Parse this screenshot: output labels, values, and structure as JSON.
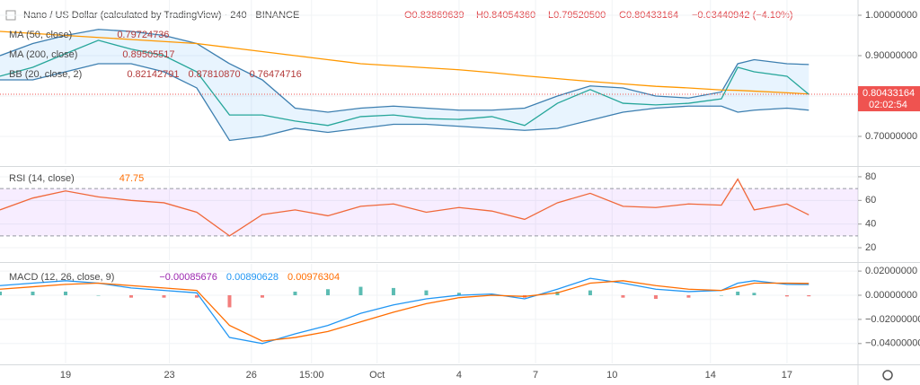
{
  "header": {
    "title": "Nano / US Dollar (calculated by TradingView) · 240 · BINANCE",
    "open": "O0.83869639",
    "high": "H0.84054360",
    "low": "L0.79520500",
    "close": "C0.80433164",
    "change": "−0.03440942 (−4.10%)"
  },
  "chart_data": [
    {
      "type": "line",
      "grid": true,
      "legend": [
        {
          "label": "MA (50, close)",
          "readings": [
            "0.79724736"
          ]
        },
        {
          "label": "MA (200, close)",
          "readings": [
            "0.89505517"
          ]
        },
        {
          "label": "BB (20, close, 2)",
          "readings": [
            "0.82142791",
            "0.87810870",
            "0.76474716"
          ]
        }
      ],
      "xlim": [
        0,
        157
      ],
      "xticks": [
        {
          "value": 12,
          "label": "19"
        },
        {
          "value": 31,
          "label": "23"
        },
        {
          "value": 46,
          "label": "26"
        },
        {
          "value": 57,
          "label": "15:00"
        },
        {
          "value": 69,
          "label": "Oct"
        },
        {
          "value": 84,
          "label": "4"
        },
        {
          "value": 98,
          "label": "7"
        },
        {
          "value": 112,
          "label": "10"
        },
        {
          "value": 130,
          "label": "14"
        },
        {
          "value": 144,
          "label": "17"
        }
      ],
      "ylim": [
        0.631,
        1.0378
      ],
      "yticks": [
        {
          "value": 0.7,
          "label": "0.70000000"
        },
        {
          "value": 0.8,
          "label": "0.80000000"
        },
        {
          "value": 0.9,
          "label": "0.90000000"
        },
        {
          "value": 1.0,
          "label": "1.00000000"
        }
      ],
      "last_price": {
        "value": 0.80433164,
        "label": "0.80433164",
        "countdown": "02:02:54",
        "color": "#ef5350"
      },
      "band_fill": "rgba(33,150,243,0.10)",
      "x": [
        0,
        6,
        12,
        18,
        24,
        30,
        36,
        42,
        48,
        54,
        60,
        66,
        72,
        78,
        84,
        90,
        96,
        102,
        108,
        114,
        120,
        126,
        132,
        135,
        138,
        144,
        148
      ],
      "series": [
        {
          "role": "band-upper",
          "color": "#3d7fb0",
          "values": [
            0.9,
            0.93,
            0.95,
            0.965,
            0.96,
            0.95,
            0.93,
            0.88,
            0.84,
            0.77,
            0.76,
            0.77,
            0.775,
            0.77,
            0.765,
            0.765,
            0.77,
            0.8,
            0.825,
            0.82,
            0.8,
            0.795,
            0.81,
            0.88,
            0.89,
            0.88,
            0.878
          ]
        },
        {
          "role": "band-lower",
          "color": "#3d7fb0",
          "values": [
            0.84,
            0.84,
            0.86,
            0.88,
            0.88,
            0.86,
            0.82,
            0.69,
            0.7,
            0.72,
            0.71,
            0.72,
            0.73,
            0.73,
            0.725,
            0.72,
            0.715,
            0.72,
            0.74,
            0.76,
            0.77,
            0.775,
            0.775,
            0.76,
            0.765,
            0.77,
            0.765
          ]
        },
        {
          "color": "#ff9800",
          "values": [
            0.96,
            0.955,
            0.95,
            0.945,
            0.94,
            0.935,
            0.93,
            0.92,
            0.91,
            0.9,
            0.89,
            0.88,
            0.875,
            0.87,
            0.865,
            0.858,
            0.85,
            0.843,
            0.836,
            0.83,
            0.824,
            0.82,
            0.815,
            0.814,
            0.812,
            0.808,
            0.805
          ]
        },
        {
          "color": "#26a69a",
          "values": [
            0.849,
            0.871,
            0.905,
            0.938,
            0.916,
            0.9,
            0.86,
            0.753,
            0.753,
            0.738,
            0.727,
            0.749,
            0.753,
            0.744,
            0.742,
            0.749,
            0.727,
            0.782,
            0.816,
            0.782,
            0.778,
            0.782,
            0.793,
            0.871,
            0.86,
            0.849,
            0.804
          ]
        }
      ]
    },
    {
      "type": "line",
      "grid": true,
      "legend": [
        {
          "label": "RSI (14, close)",
          "readings": [
            "47.75"
          ]
        }
      ],
      "ylim": [
        9.4,
        86.8
      ],
      "yticks": [
        20,
        40,
        60,
        80
      ],
      "band": [
        30,
        70
      ],
      "band_fill": "rgba(153,21,255,0.08)",
      "x": [
        0,
        6,
        12,
        18,
        24,
        30,
        36,
        42,
        48,
        54,
        60,
        66,
        72,
        78,
        84,
        90,
        96,
        102,
        108,
        114,
        120,
        126,
        132,
        135,
        138,
        144,
        148
      ],
      "series": [
        {
          "color": "#f0683a",
          "values": [
            52,
            62,
            68,
            63,
            60,
            58,
            50,
            30,
            48,
            52,
            47,
            55,
            57,
            50,
            54,
            51,
            44,
            58,
            66,
            55,
            54,
            57,
            56,
            78,
            52,
            57,
            47.75
          ]
        }
      ]
    },
    {
      "type": "line",
      "grid": true,
      "legend": [
        {
          "label": "MACD (12, 26, close, 9)",
          "readings": [
            "−0.00085676",
            "0.00890628",
            "0.00976304"
          ]
        }
      ],
      "ylim": [
        -0.0565,
        0.026
      ],
      "yticks": [
        {
          "value": -0.04,
          "label": "−0.04000000"
        },
        {
          "value": -0.02,
          "label": "−0.02000000"
        },
        {
          "value": 0,
          "label": "0.00000000"
        },
        {
          "value": 0.02,
          "label": "0.02000000"
        }
      ],
      "x": [
        0,
        6,
        12,
        18,
        24,
        30,
        36,
        42,
        48,
        54,
        60,
        66,
        72,
        78,
        84,
        90,
        96,
        102,
        108,
        114,
        120,
        126,
        132,
        135,
        138,
        144,
        148
      ],
      "series": [
        {
          "role": "histogram",
          "color": "#26a69a",
          "negative_color": "#ef5350",
          "values": [
            0.003,
            0.003,
            0.003,
            0,
            -0.002,
            -0.002,
            -0.002,
            -0.01,
            -0.002,
            0.003,
            0.005,
            0.007,
            0.006,
            0.004,
            0.002,
            0.001,
            -0.002,
            0.003,
            0.004,
            -0.002,
            -0.003,
            -0.002,
            0,
            0.003,
            0.002,
            -0.001,
            -0.0009
          ]
        },
        {
          "color": "#2196f3",
          "values": [
            0.008,
            0.01,
            0.012,
            0.01,
            0.006,
            0.004,
            0.002,
            -0.035,
            -0.04,
            -0.032,
            -0.025,
            -0.015,
            -0.008,
            -0.003,
            0.0,
            0.001,
            -0.003,
            0.005,
            0.014,
            0.01,
            0.005,
            0.003,
            0.004,
            0.01,
            0.012,
            0.009,
            0.0089
          ]
        },
        {
          "color": "#ff6d00",
          "values": [
            0.005,
            0.007,
            0.009,
            0.01,
            0.008,
            0.006,
            0.004,
            -0.025,
            -0.038,
            -0.035,
            -0.03,
            -0.022,
            -0.014,
            -0.007,
            -0.002,
            0.0,
            -0.001,
            0.002,
            0.01,
            0.012,
            0.008,
            0.005,
            0.004,
            0.007,
            0.01,
            0.01,
            0.0098
          ]
        }
      ]
    }
  ]
}
